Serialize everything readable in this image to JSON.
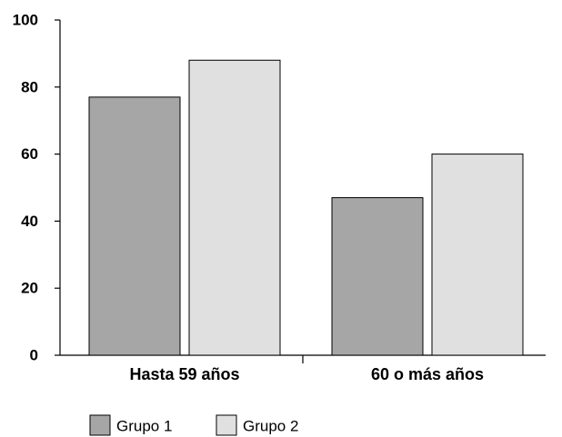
{
  "chart_data": {
    "type": "bar",
    "title": "",
    "xlabel": "",
    "ylabel": "",
    "categories": [
      "Hasta 59 años",
      "60 o más años"
    ],
    "series": [
      {
        "name": "Grupo 1",
        "values": [
          77,
          47
        ],
        "color": "#a6a6a6"
      },
      {
        "name": "Grupo 2",
        "values": [
          88,
          60
        ],
        "color": "#e0e0e0"
      }
    ],
    "ylim": [
      0,
      100
    ],
    "yticks": [
      "0",
      "20",
      "40",
      "60",
      "80",
      "100"
    ],
    "grid": false,
    "legend_position": "bottom-left"
  }
}
